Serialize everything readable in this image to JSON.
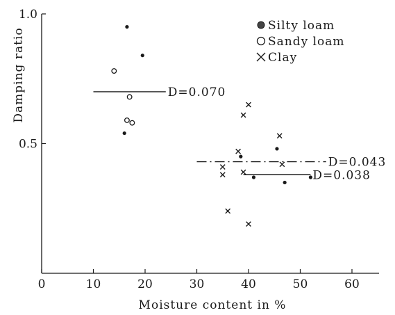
{
  "chart_data": {
    "type": "scatter",
    "xlabel": "Moisture content in %",
    "ylabel": "Damping ratio",
    "xlim": [
      0,
      65
    ],
    "ylim": [
      0,
      1.0
    ],
    "x_ticks": [
      0,
      10,
      20,
      30,
      40,
      50,
      60
    ],
    "y_ticks": [
      0.5,
      1.0
    ],
    "y_tick_labels": [
      "0.5",
      "1.0"
    ],
    "legend_position": "top-right",
    "series": [
      {
        "name": "Silty loam",
        "marker": "filled-dot",
        "points": [
          [
            16.5,
            0.95
          ],
          [
            19.5,
            0.84
          ],
          [
            16.0,
            0.54
          ],
          [
            38.5,
            0.45
          ],
          [
            41.0,
            0.37
          ],
          [
            45.5,
            0.48
          ],
          [
            47.0,
            0.35
          ],
          [
            52.0,
            0.37
          ]
        ]
      },
      {
        "name": "Sandy loam",
        "marker": "open-circle",
        "points": [
          [
            14.0,
            0.78
          ],
          [
            17.0,
            0.68
          ],
          [
            16.5,
            0.59
          ],
          [
            17.5,
            0.58
          ]
        ]
      },
      {
        "name": "Clay",
        "marker": "cross",
        "points": [
          [
            39.0,
            0.61
          ],
          [
            40.0,
            0.65
          ],
          [
            46.0,
            0.53
          ],
          [
            38.0,
            0.47
          ],
          [
            35.0,
            0.41
          ],
          [
            35.0,
            0.38
          ],
          [
            39.0,
            0.39
          ],
          [
            46.5,
            0.42
          ],
          [
            36.0,
            0.24
          ],
          [
            40.0,
            0.19
          ]
        ]
      }
    ],
    "reference_lines": [
      {
        "label": "D=0.070",
        "style": "solid",
        "x_range": [
          10,
          24
        ],
        "y": 0.7
      },
      {
        "label": "D=0.043",
        "style": "dash-dot",
        "x_range": [
          30,
          55
        ],
        "y": 0.43
      },
      {
        "label": "D=0.038",
        "style": "solid",
        "x_range": [
          39,
          52
        ],
        "y": 0.38
      }
    ]
  }
}
